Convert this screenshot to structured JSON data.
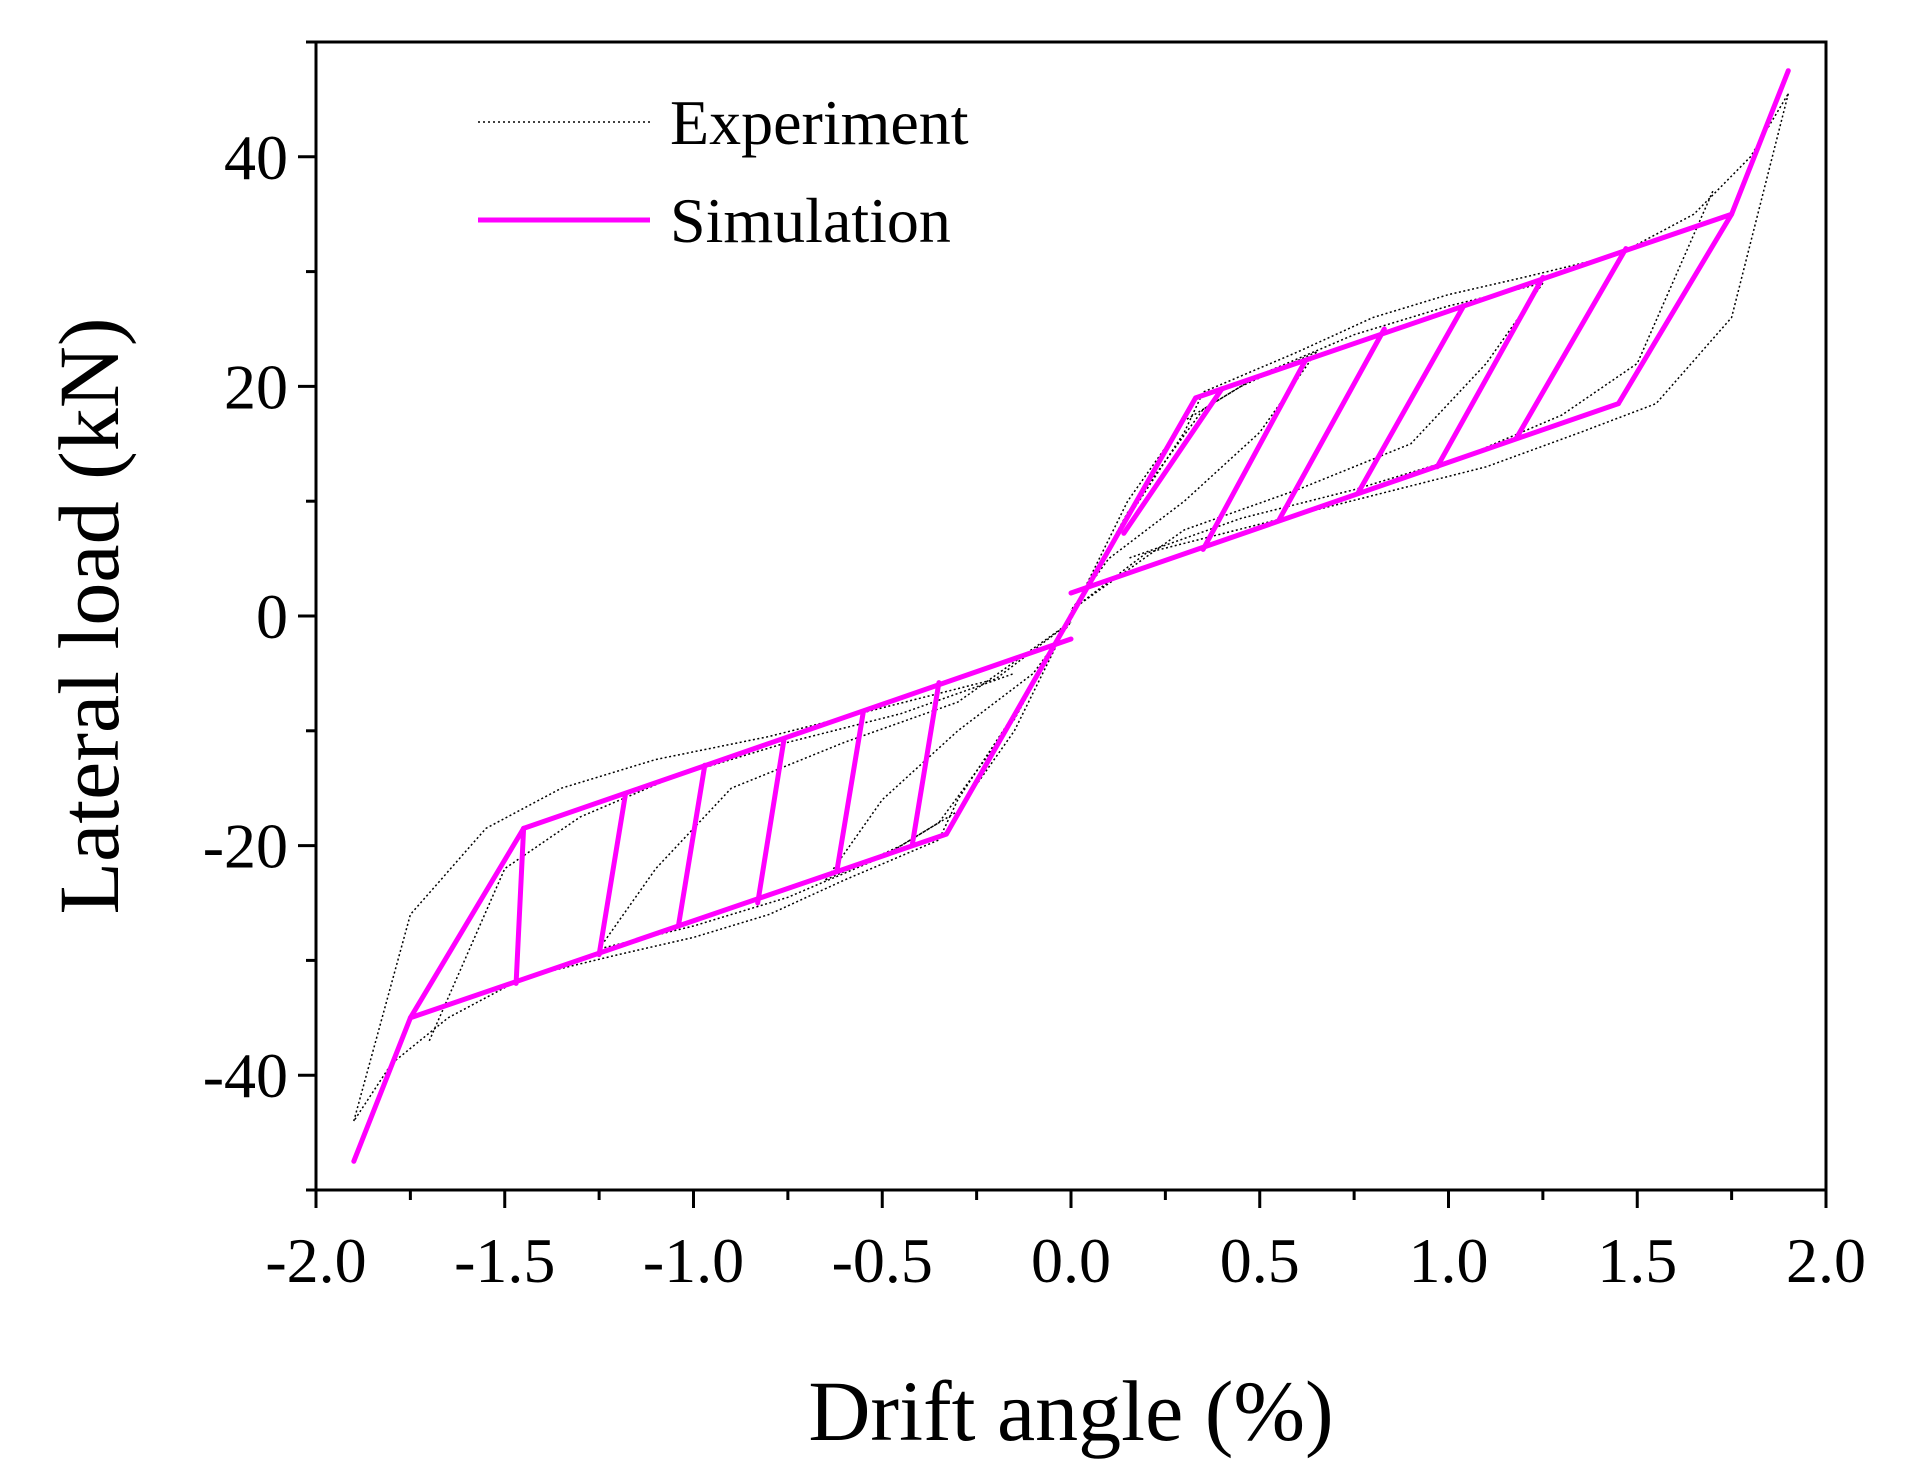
{
  "chart_data": {
    "type": "line",
    "title": "",
    "xlabel": "Drift angle (%)",
    "ylabel": "Lateral load (kN)",
    "xlim": [
      -2.0,
      2.0
    ],
    "ylim": [
      -50,
      50
    ],
    "x_ticks": [
      -2.0,
      -1.5,
      -1.0,
      -0.5,
      0.0,
      0.5,
      1.0,
      1.5,
      2.0
    ],
    "x_tick_labels": [
      "-2.0",
      "-1.5",
      "-1.0",
      "-0.5",
      "0.0",
      "0.5",
      "1.0",
      "1.5",
      "2.0"
    ],
    "y_ticks": [
      -40,
      -20,
      0,
      20,
      40
    ],
    "y_tick_labels": [
      "-40",
      "-20",
      "0",
      "20",
      "40"
    ],
    "grid": false,
    "legend_position": "top-left",
    "legend": [
      {
        "name": "Experiment",
        "style": "dotted",
        "color": "#000000"
      },
      {
        "name": "Simulation",
        "style": "solid",
        "color": "#ff00ff"
      }
    ],
    "series": [
      {
        "name": "Experiment",
        "color": "#000000",
        "branches": [
          {
            "x": [
              0.0,
              0.1,
              0.3,
              0.35,
              0.6,
              0.8,
              1.0,
              1.2,
              1.45,
              1.65,
              1.8,
              1.9
            ],
            "y": [
              0.0,
              6,
              16,
              19.5,
              23,
              26,
              28,
              29.5,
              31.5,
              35,
              40,
              45.5
            ]
          },
          {
            "x": [
              1.9,
              1.75,
              1.55,
              1.35,
              1.1,
              0.8,
              0.5,
              0.2,
              0.0
            ],
            "y": [
              45.5,
              26,
              18.5,
              16,
              13,
              10.5,
              8,
              5.5,
              0.5
            ]
          },
          {
            "x": [
              0.0,
              -0.1,
              -0.3,
              -0.35,
              -0.6,
              -0.8,
              -1.0,
              -1.2,
              -1.45,
              -1.65,
              -1.8,
              -1.9
            ],
            "y": [
              0.0,
              -6,
              -16,
              -19.5,
              -23,
              -26,
              -28,
              -29.5,
              -31.5,
              -35,
              -39,
              -44
            ]
          },
          {
            "x": [
              -1.9,
              -1.75,
              -1.55,
              -1.35,
              -1.1,
              -0.8,
              -0.5,
              -0.2,
              0.0
            ],
            "y": [
              -44,
              -26,
              -18.5,
              -15,
              -12.5,
              -10.5,
              -8,
              -5.5,
              -0.5
            ]
          },
          {
            "x": [
              0.0,
              0.15,
              0.35,
              0.5,
              0.75,
              1.0,
              1.25
            ],
            "y": [
              0.0,
              9,
              18,
              21,
              24.5,
              27,
              29
            ]
          },
          {
            "x": [
              1.25,
              1.1,
              0.9,
              0.6,
              0.3,
              0.0
            ],
            "y": [
              29,
              22,
              15,
              11,
              7.5,
              0.5
            ]
          },
          {
            "x": [
              0.0,
              -0.15,
              -0.35,
              -0.5,
              -0.75,
              -1.0,
              -1.25
            ],
            "y": [
              0.0,
              -9,
              -18,
              -21,
              -24.5,
              -27,
              -29
            ]
          },
          {
            "x": [
              -1.25,
              -1.1,
              -0.9,
              -0.6,
              -0.3,
              0.0
            ],
            "y": [
              -29,
              -22,
              -15,
              -11,
              -7.5,
              -0.5
            ]
          },
          {
            "x": [
              0.0,
              0.15,
              0.3,
              0.45,
              0.65
            ],
            "y": [
              0.0,
              10,
              17,
              20,
              23
            ]
          },
          {
            "x": [
              0.65,
              0.5,
              0.3,
              0.1,
              0.0
            ],
            "y": [
              23,
              16,
              10,
              5,
              0.5
            ]
          },
          {
            "x": [
              0.0,
              -0.15,
              -0.3,
              -0.45,
              -0.65
            ],
            "y": [
              0.0,
              -10,
              -17,
              -20,
              -23
            ]
          },
          {
            "x": [
              -0.65,
              -0.5,
              -0.3,
              -0.1,
              0.0
            ],
            "y": [
              -23,
              -16,
              -10,
              -5,
              -0.5
            ]
          },
          {
            "x": [
              1.7,
              1.5,
              1.3,
              1.05,
              0.75,
              0.45,
              0.15
            ],
            "y": [
              37,
              22,
              17.5,
              14,
              11,
              8.5,
              5
            ]
          },
          {
            "x": [
              -1.7,
              -1.5,
              -1.3,
              -1.05,
              -0.75,
              -0.45,
              -0.15
            ],
            "y": [
              -37,
              -22,
              -17.5,
              -14,
              -11,
              -8.5,
              -5
            ]
          }
        ]
      },
      {
        "name": "Simulation",
        "color": "#ff00ff",
        "envelope_positive": {
          "x": [
            0.0,
            0.33,
            1.75,
            1.9
          ],
          "y": [
            0.0,
            19,
            35,
            47.5
          ]
        },
        "envelope_negative": {
          "x": [
            0.0,
            -0.33,
            -1.75,
            -1.9
          ],
          "y": [
            0.0,
            -19,
            -35,
            -47.5
          ]
        },
        "lower_line_positive": {
          "x": [
            0.0,
            1.45
          ],
          "y": [
            2.0,
            18.5
          ]
        },
        "lower_line_negative": {
          "x": [
            0.0,
            -1.45
          ],
          "y": [
            -2.0,
            -18.5
          ]
        },
        "unloading_positive": [
          {
            "x": [
              0.4,
              0.14
            ],
            "y": [
              19.8,
              7.2
            ]
          },
          {
            "x": [
              0.62,
              0.35
            ],
            "y": [
              22.2,
              5.8
            ]
          },
          {
            "x": [
              0.83,
              0.55
            ],
            "y": [
              25.0,
              8.3
            ]
          },
          {
            "x": [
              1.04,
              0.76
            ],
            "y": [
              27.0,
              10.7
            ]
          },
          {
            "x": [
              1.25,
              0.97
            ],
            "y": [
              29.5,
              13.0
            ]
          },
          {
            "x": [
              1.47,
              1.18
            ],
            "y": [
              32.0,
              15.5
            ]
          },
          {
            "x": [
              1.75,
              1.45
            ],
            "y": [
              35.0,
              18.5
            ]
          }
        ],
        "unloading_negative": [
          {
            "x": [
              -0.35,
              -0.42
            ],
            "y": [
              -5.8,
              -19.8
            ]
          },
          {
            "x": [
              -0.55,
              -0.62
            ],
            "y": [
              -8.3,
              -22.2
            ]
          },
          {
            "x": [
              -0.76,
              -0.83
            ],
            "y": [
              -10.7,
              -25.0
            ]
          },
          {
            "x": [
              -0.97,
              -1.04
            ],
            "y": [
              -13.0,
              -27.0
            ]
          },
          {
            "x": [
              -1.18,
              -1.25
            ],
            "y": [
              -15.5,
              -29.5
            ]
          },
          {
            "x": [
              -1.45,
              -1.47
            ],
            "y": [
              -18.5,
              -32.0
            ]
          },
          {
            "x": [
              -1.75,
              -1.45
            ],
            "y": [
              -35.0,
              -18.5
            ]
          }
        ]
      }
    ]
  }
}
